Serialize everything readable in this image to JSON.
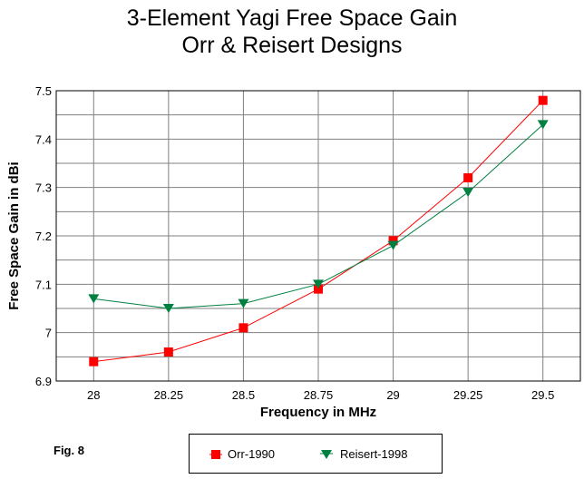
{
  "chart_data": {
    "type": "line",
    "title": "3-Element Yagi Free Space Gain",
    "subtitle": "Orr & Reisert Designs",
    "xlabel": "Frequency in MHz",
    "ylabel": "Free Space Gain in dBi",
    "categories": [
      "28",
      "28.25",
      "28.5",
      "28.75",
      "29",
      "29.25",
      "29.5"
    ],
    "ylim": [
      6.9,
      7.5
    ],
    "yticks": [
      "6.9",
      "7",
      "7.1",
      "7.2",
      "7.3",
      "7.4",
      "7.5"
    ],
    "grid": true,
    "legend_position": "bottom",
    "series": [
      {
        "name": "Orr-1990",
        "color": "#ff0000",
        "marker": "square",
        "values": [
          6.94,
          6.96,
          7.01,
          7.09,
          7.19,
          7.32,
          7.48
        ]
      },
      {
        "name": "Reisert-1998",
        "color": "#008040",
        "marker": "triangle-down",
        "values": [
          7.07,
          7.05,
          7.06,
          7.1,
          7.18,
          7.29,
          7.43
        ]
      }
    ],
    "annotation": "Fig. 8"
  }
}
